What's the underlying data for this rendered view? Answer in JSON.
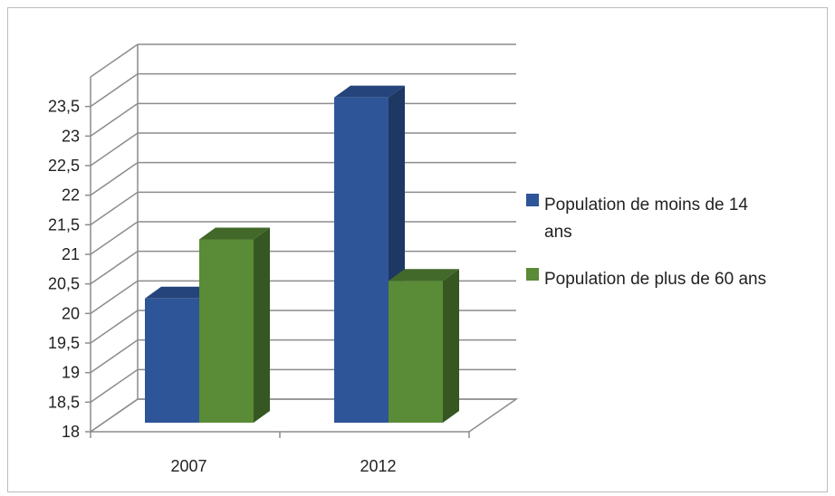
{
  "chart_data": {
    "type": "bar",
    "title": "",
    "xlabel": "",
    "ylabel": "",
    "categories": [
      "2007",
      "2012"
    ],
    "series": [
      {
        "name": "Population de moins de 14 ans",
        "values": [
          20.1,
          23.5
        ],
        "color": "#2e5597",
        "side_color": "#1e3864",
        "top_color": "#24447b"
      },
      {
        "name": "Population de plus de 60 ans",
        "values": [
          21.1,
          20.4
        ],
        "color": "#5a8b37",
        "side_color": "#365722",
        "top_color": "#43692a"
      }
    ],
    "ylim": [
      18,
      23.5
    ],
    "y_ticks": [
      "18",
      "18,5",
      "19",
      "19,5",
      "20",
      "20,5",
      "21",
      "21,5",
      "22",
      "22,5",
      "23",
      "23,5"
    ],
    "grid": true,
    "legend": {
      "position": "right",
      "entries": [
        {
          "lines": [
            "Population de moins de 14",
            "ans"
          ],
          "color": "#2e5597"
        },
        {
          "lines": [
            "Population de plus de 60 ans"
          ],
          "color": "#5a8b37"
        }
      ]
    }
  }
}
